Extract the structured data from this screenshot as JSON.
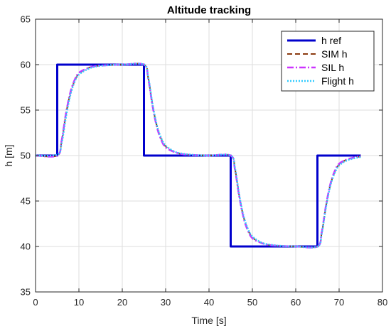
{
  "chart_data": {
    "type": "line",
    "title": "Altitude tracking",
    "xlabel": "Time [s]",
    "ylabel": "h [m]",
    "xlim": [
      0,
      80
    ],
    "ylim": [
      35,
      65
    ],
    "xticks": [
      0,
      10,
      20,
      30,
      40,
      50,
      60,
      70,
      80
    ],
    "yticks": [
      35,
      40,
      45,
      50,
      55,
      60,
      65
    ],
    "grid": true,
    "legend_position": "top-right",
    "series": [
      {
        "name": "h ref",
        "color": "#0000cc",
        "style": "solid",
        "x": [
          0,
          5,
          5,
          25,
          25,
          45,
          45,
          65,
          65,
          75
        ],
        "y": [
          50,
          50,
          60,
          60,
          50,
          50,
          40,
          40,
          50,
          50
        ]
      },
      {
        "name": "SIM h",
        "color": "#8b3a0f",
        "style": "dashed",
        "x": [
          0,
          5,
          6,
          7,
          8,
          9,
          10,
          12,
          14,
          17,
          20,
          25,
          26,
          27,
          28,
          29,
          30,
          32,
          34,
          37,
          40,
          45,
          46,
          47,
          48,
          49,
          50,
          52,
          54,
          57,
          60,
          65,
          66,
          67,
          68,
          69,
          70,
          72,
          75
        ],
        "y": [
          50,
          50,
          51.5,
          54.5,
          56.8,
          58.2,
          59,
          59.6,
          59.85,
          59.95,
          60,
          60,
          58.5,
          55.5,
          53.2,
          51.8,
          51,
          50.4,
          50.15,
          50.05,
          50,
          50,
          48.5,
          45.5,
          43.2,
          41.8,
          41,
          40.4,
          40.15,
          40.05,
          40,
          40,
          41.5,
          44.5,
          46.8,
          48.2,
          49,
          49.6,
          49.9
        ]
      },
      {
        "name": "SIL h",
        "color": "#cc33ff",
        "style": "dashdot",
        "x": [
          0,
          5,
          6,
          7,
          8,
          9,
          10,
          12,
          14,
          17,
          20,
          25,
          26,
          27,
          28,
          29,
          30,
          32,
          34,
          37,
          40,
          45,
          46,
          47,
          48,
          49,
          50,
          52,
          54,
          57,
          60,
          65,
          66,
          67,
          68,
          69,
          70,
          72,
          75
        ],
        "y": [
          50,
          50,
          51.6,
          54.6,
          56.9,
          58.3,
          59.1,
          59.6,
          59.85,
          59.95,
          60,
          60,
          58.4,
          55.4,
          53.1,
          51.7,
          50.9,
          50.4,
          50.15,
          50.05,
          50,
          50,
          48.4,
          45.4,
          43.1,
          41.7,
          40.9,
          40.4,
          40.15,
          40.05,
          40,
          40,
          41.6,
          44.6,
          46.9,
          48.3,
          49.1,
          49.6,
          49.95
        ]
      },
      {
        "name": "Flight h",
        "color": "#33ccff",
        "style": "dotted",
        "x": [
          0,
          5,
          6,
          7,
          8,
          9,
          10,
          12,
          14,
          17,
          20,
          25,
          26,
          27,
          28,
          29,
          30,
          32,
          34,
          37,
          40,
          45,
          46,
          47,
          48,
          49,
          50,
          52,
          54,
          57,
          60,
          65,
          66,
          67,
          68,
          69,
          70,
          72,
          75
        ],
        "y": [
          50,
          50.1,
          51.3,
          54.2,
          56.6,
          58.1,
          58.9,
          59.5,
          59.8,
          59.95,
          60,
          60,
          58.6,
          55.6,
          53.3,
          51.9,
          51.1,
          50.45,
          50.2,
          50.05,
          50,
          50,
          48.6,
          45.6,
          43.3,
          41.9,
          41.1,
          40.45,
          40.2,
          40.05,
          40,
          40,
          41.4,
          44.4,
          46.7,
          48.1,
          48.9,
          49.5,
          49.85
        ]
      }
    ]
  }
}
